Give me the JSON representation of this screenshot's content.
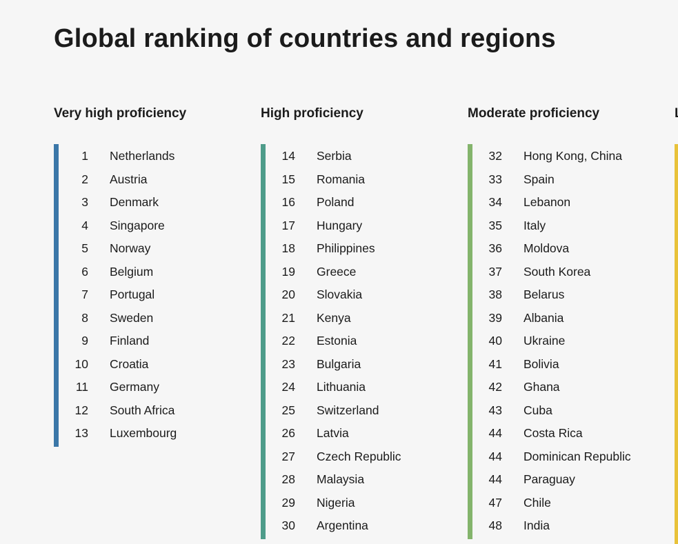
{
  "title": "Global ranking of countries and regions",
  "columns": [
    {
      "heading": "Very high proficiency",
      "color": "#3b77a8",
      "rows": [
        {
          "rank": "1",
          "country": "Netherlands"
        },
        {
          "rank": "2",
          "country": "Austria"
        },
        {
          "rank": "3",
          "country": "Denmark"
        },
        {
          "rank": "4",
          "country": "Singapore"
        },
        {
          "rank": "5",
          "country": "Norway"
        },
        {
          "rank": "6",
          "country": "Belgium"
        },
        {
          "rank": "7",
          "country": "Portugal"
        },
        {
          "rank": "8",
          "country": "Sweden"
        },
        {
          "rank": "9",
          "country": "Finland"
        },
        {
          "rank": "10",
          "country": "Croatia"
        },
        {
          "rank": "11",
          "country": "Germany"
        },
        {
          "rank": "12",
          "country": "South Africa"
        },
        {
          "rank": "13",
          "country": "Luxembourg"
        }
      ]
    },
    {
      "heading": "High proficiency",
      "color": "#4e9c8a",
      "rows": [
        {
          "rank": "14",
          "country": "Serbia"
        },
        {
          "rank": "15",
          "country": "Romania"
        },
        {
          "rank": "16",
          "country": "Poland"
        },
        {
          "rank": "17",
          "country": "Hungary"
        },
        {
          "rank": "18",
          "country": "Philippines"
        },
        {
          "rank": "19",
          "country": "Greece"
        },
        {
          "rank": "20",
          "country": "Slovakia"
        },
        {
          "rank": "21",
          "country": "Kenya"
        },
        {
          "rank": "22",
          "country": "Estonia"
        },
        {
          "rank": "23",
          "country": "Bulgaria"
        },
        {
          "rank": "24",
          "country": "Lithuania"
        },
        {
          "rank": "25",
          "country": "Switzerland"
        },
        {
          "rank": "26",
          "country": "Latvia"
        },
        {
          "rank": "27",
          "country": "Czech Republic"
        },
        {
          "rank": "28",
          "country": "Malaysia"
        },
        {
          "rank": "29",
          "country": "Nigeria"
        },
        {
          "rank": "30",
          "country": "Argentina"
        }
      ]
    },
    {
      "heading": "Moderate proficiency",
      "color": "#84b46c",
      "rows": [
        {
          "rank": "32",
          "country": "Hong Kong, China"
        },
        {
          "rank": "33",
          "country": "Spain"
        },
        {
          "rank": "34",
          "country": "Lebanon"
        },
        {
          "rank": "35",
          "country": "Italy"
        },
        {
          "rank": "36",
          "country": "Moldova"
        },
        {
          "rank": "37",
          "country": "South Korea"
        },
        {
          "rank": "38",
          "country": "Belarus"
        },
        {
          "rank": "39",
          "country": "Albania"
        },
        {
          "rank": "40",
          "country": "Ukraine"
        },
        {
          "rank": "41",
          "country": "Bolivia"
        },
        {
          "rank": "42",
          "country": "Ghana"
        },
        {
          "rank": "43",
          "country": "Cuba"
        },
        {
          "rank": "44",
          "country": "Costa Rica"
        },
        {
          "rank": "44",
          "country": "Dominican Republic"
        },
        {
          "rank": "44",
          "country": "Paraguay"
        },
        {
          "rank": "47",
          "country": "Chile"
        },
        {
          "rank": "48",
          "country": "India"
        }
      ]
    },
    {
      "heading": "L",
      "color": "#e8c23a",
      "rows": []
    }
  ]
}
